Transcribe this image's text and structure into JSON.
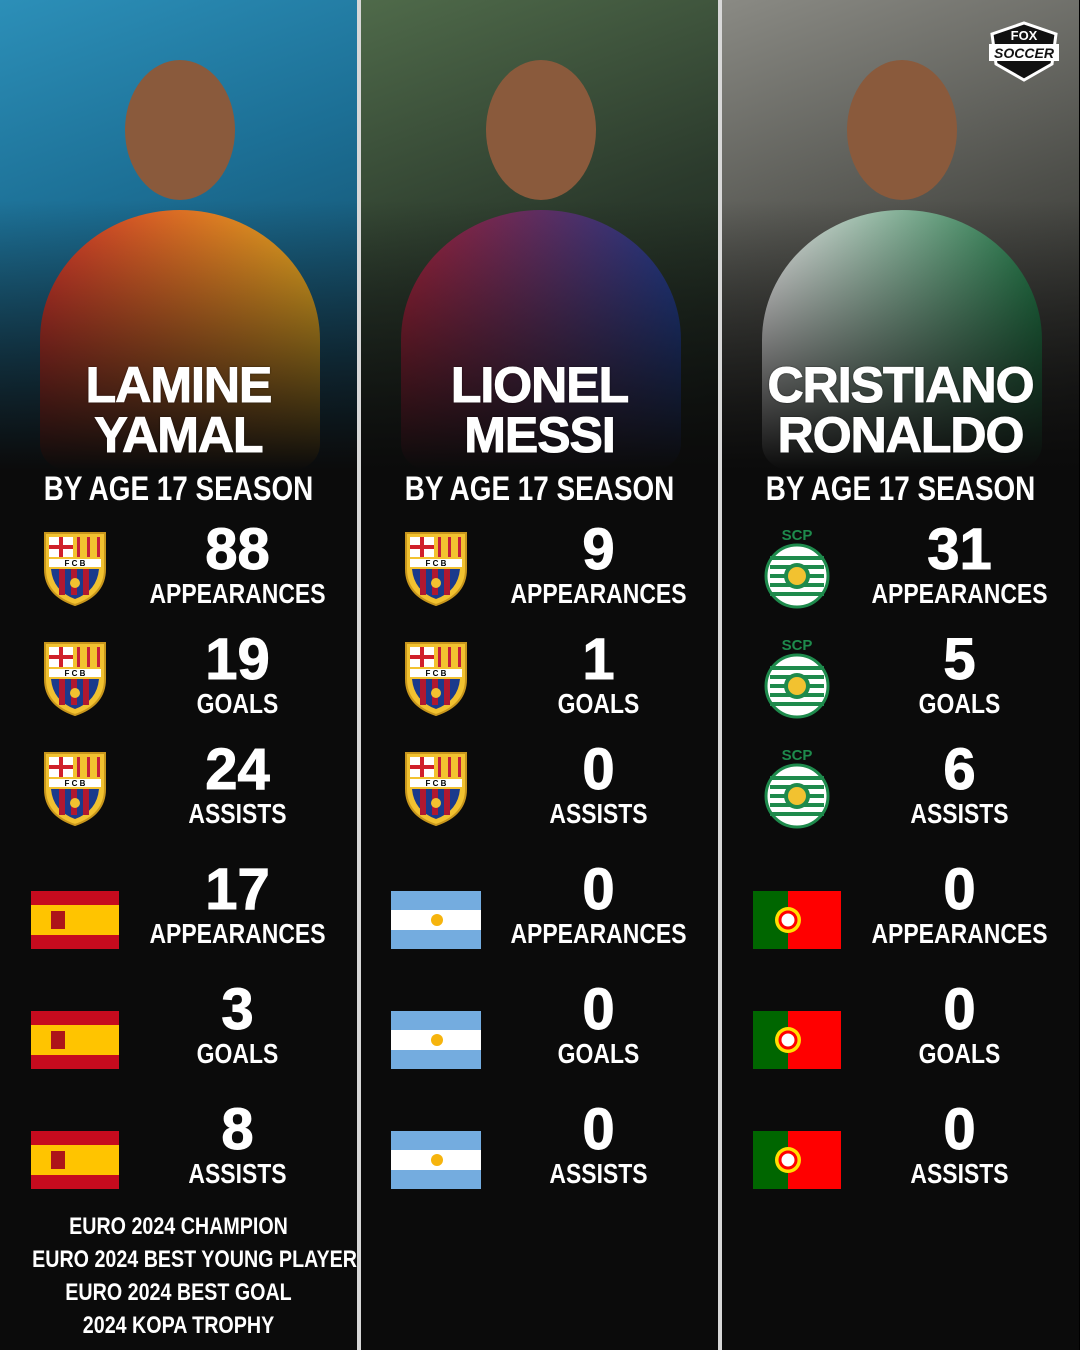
{
  "subtitle": "BY AGE 17 SEASON",
  "brand": {
    "logo_text": [
      "FOX",
      "SOCCER"
    ]
  },
  "colors": {
    "background": "#0b0b0b",
    "text": "#ffffff",
    "separator": "#d8d8d8"
  },
  "players": [
    {
      "name_line1": "LAMINE",
      "name_line2": "YAMAL",
      "club_icon": "fc-barcelona-crest",
      "country_icon": "spain-flag",
      "stats": [
        {
          "value": "88",
          "label": "APPEARANCES"
        },
        {
          "value": "19",
          "label": "GOALS"
        },
        {
          "value": "24",
          "label": "ASSISTS"
        },
        {
          "value": "17",
          "label": "APPEARANCES"
        },
        {
          "value": "3",
          "label": "GOALS"
        },
        {
          "value": "8",
          "label": "ASSISTS"
        }
      ],
      "honors": [
        "EURO 2024 CHAMPION",
        "EURO 2024 BEST YOUNG PLAYER",
        "EURO 2024 BEST GOAL",
        "2024 KOPA TROPHY"
      ]
    },
    {
      "name_line1": "LIONEL",
      "name_line2": "MESSI",
      "club_icon": "fc-barcelona-crest",
      "country_icon": "argentina-flag",
      "stats": [
        {
          "value": "9",
          "label": "APPEARANCES"
        },
        {
          "value": "1",
          "label": "GOALS"
        },
        {
          "value": "0",
          "label": "ASSISTS"
        },
        {
          "value": "0",
          "label": "APPEARANCES"
        },
        {
          "value": "0",
          "label": "GOALS"
        },
        {
          "value": "0",
          "label": "ASSISTS"
        }
      ],
      "honors": []
    },
    {
      "name_line1": "CRISTIANO",
      "name_line2": "RONALDO",
      "club_icon": "sporting-cp-crest",
      "country_icon": "portugal-flag",
      "stats": [
        {
          "value": "31",
          "label": "APPEARANCES"
        },
        {
          "value": "5",
          "label": "GOALS"
        },
        {
          "value": "6",
          "label": "ASSISTS"
        },
        {
          "value": "0",
          "label": "APPEARANCES"
        },
        {
          "value": "0",
          "label": "GOALS"
        },
        {
          "value": "0",
          "label": "ASSISTS"
        }
      ],
      "honors": []
    }
  ]
}
